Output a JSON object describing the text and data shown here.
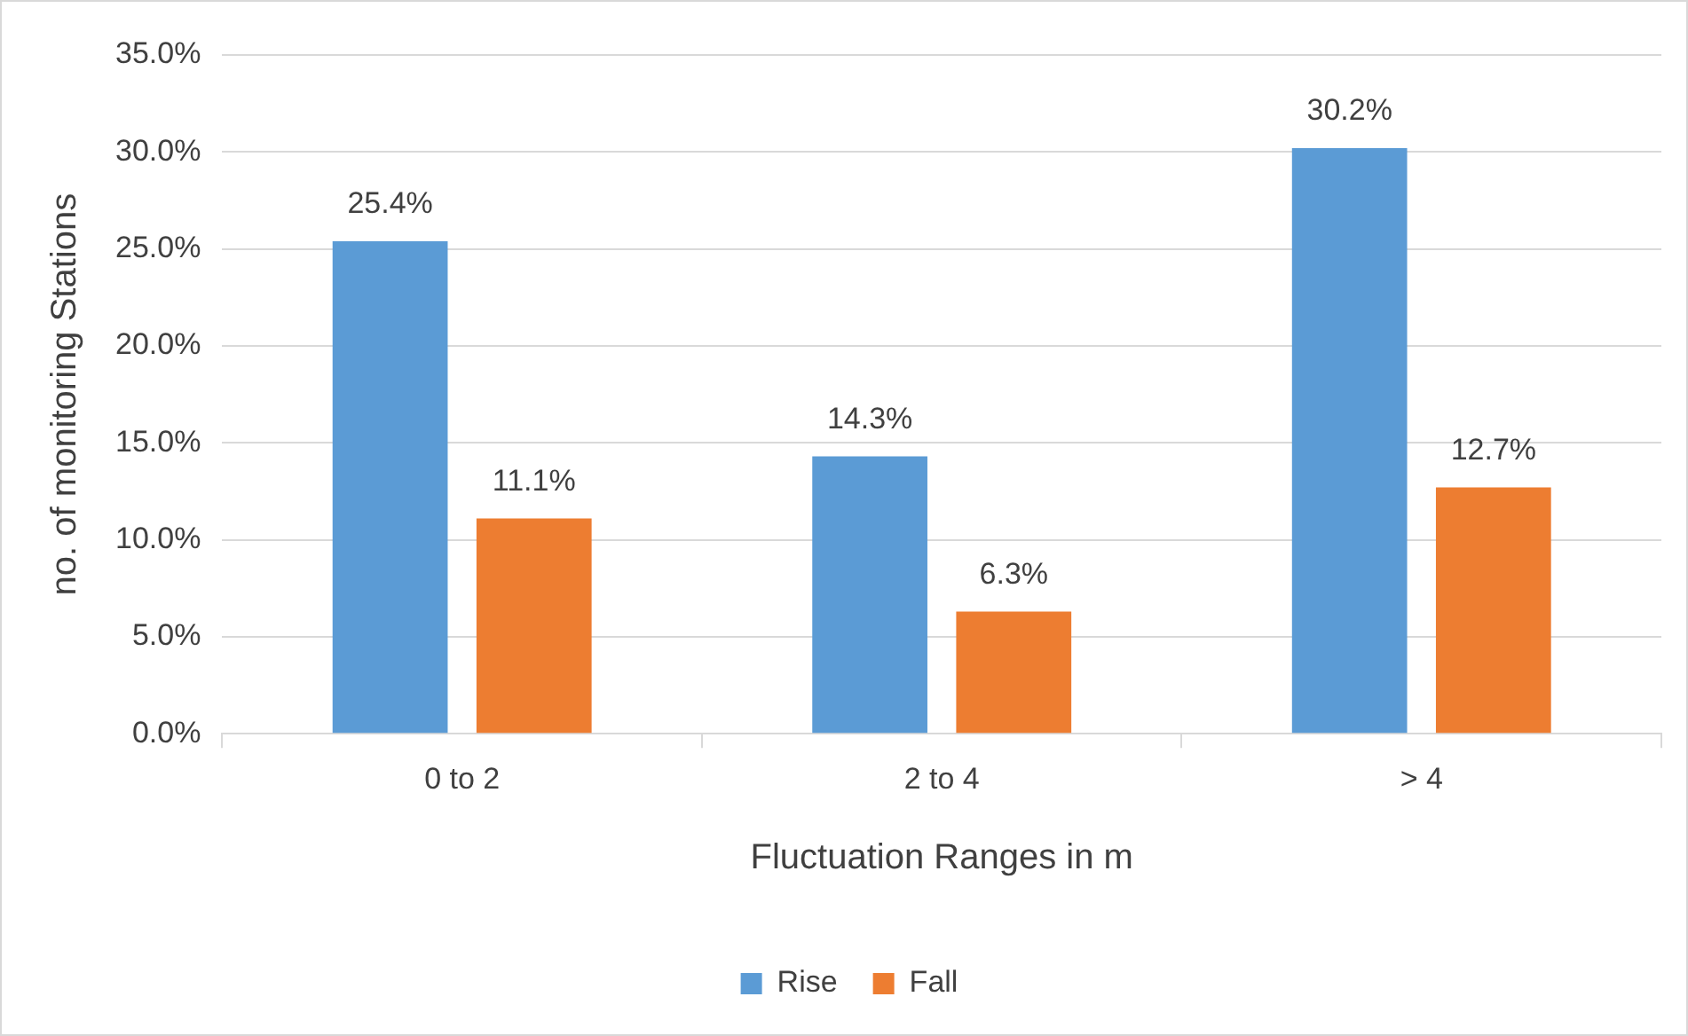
{
  "chart_data": {
    "type": "bar",
    "xlabel": "Fluctuation Ranges in m",
    "ylabel": "no. of monitoring Stations",
    "categories": [
      "0 to 2",
      "2 to 4",
      "> 4"
    ],
    "series": [
      {
        "name": "Rise",
        "color": "#5b9bd5",
        "values": [
          25.4,
          14.3,
          30.2
        ],
        "value_labels": [
          "25.4%",
          "14.3%",
          "30.2%"
        ]
      },
      {
        "name": "Fall",
        "color": "#ed7d31",
        "values": [
          11.1,
          6.3,
          12.7
        ],
        "value_labels": [
          "11.1%",
          "6.3%",
          "12.7%"
        ]
      }
    ],
    "ylim": [
      0,
      35
    ],
    "yticks": [
      {
        "value": 0,
        "label": "0.0%"
      },
      {
        "value": 5,
        "label": "5.0%"
      },
      {
        "value": 10,
        "label": "10.0%"
      },
      {
        "value": 15,
        "label": "15.0%"
      },
      {
        "value": 20,
        "label": "20.0%"
      },
      {
        "value": 25,
        "label": "25.0%"
      },
      {
        "value": 30,
        "label": "30.0%"
      },
      {
        "value": 35,
        "label": "35.0%"
      }
    ],
    "grid": "y",
    "legend": "bottom"
  }
}
